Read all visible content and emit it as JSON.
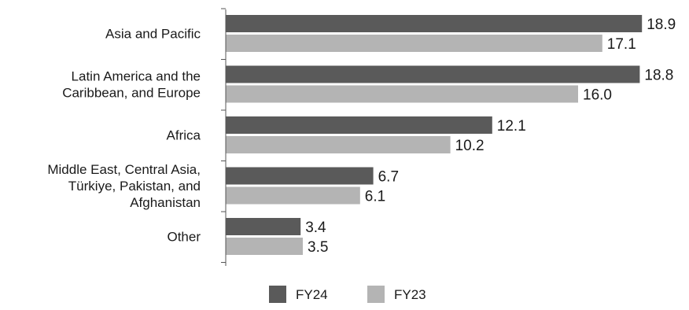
{
  "chart_data": {
    "type": "bar",
    "orientation": "horizontal",
    "title": "",
    "xlabel": "",
    "ylabel": "",
    "categories": [
      [
        "Asia and Pacific"
      ],
      [
        "Latin America and the",
        "Caribbean, and Europe"
      ],
      [
        "Africa"
      ],
      [
        "Middle East, Central Asia,",
        "Türkiye, Pakistan, and",
        "Afghanistan"
      ],
      [
        "Other"
      ]
    ],
    "series": [
      {
        "name": "FY24",
        "color": "#5a5a5a",
        "values": [
          18.9,
          18.8,
          12.1,
          6.7,
          3.4
        ],
        "labels": [
          "18.9",
          "18.8",
          "12.1",
          "6.7",
          "3.4"
        ]
      },
      {
        "name": "FY23",
        "color": "#b4b4b4",
        "values": [
          17.1,
          16.0,
          10.2,
          6.1,
          3.5
        ],
        "labels": [
          "17.1",
          "16.0",
          "10.2",
          "6.1",
          "3.5"
        ]
      }
    ],
    "xlim": [
      0,
      20
    ],
    "grid": false,
    "legend_position": "bottom"
  }
}
